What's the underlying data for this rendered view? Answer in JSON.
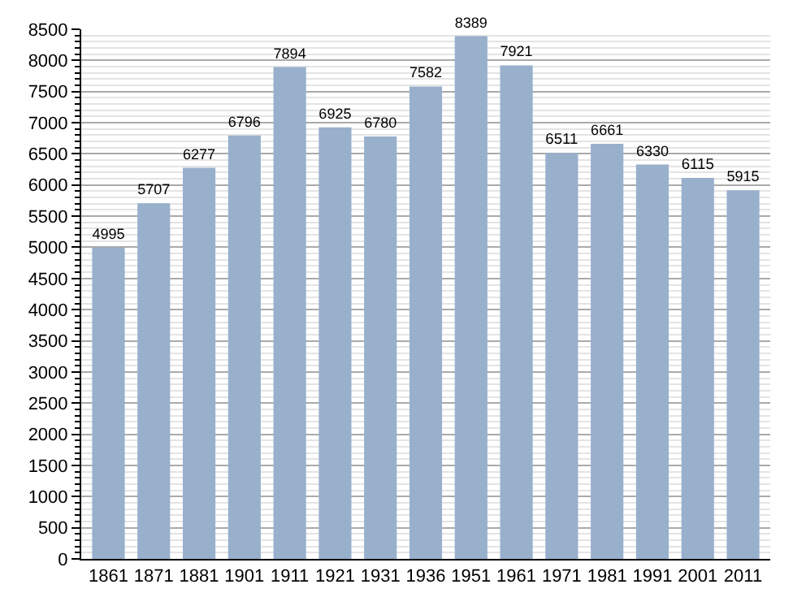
{
  "chart_data": {
    "type": "bar",
    "categories": [
      "1861",
      "1871",
      "1881",
      "1901",
      "1911",
      "1921",
      "1931",
      "1936",
      "1951",
      "1961",
      "1971",
      "1981",
      "1991",
      "2001",
      "2011"
    ],
    "values": [
      4995,
      5707,
      6277,
      6796,
      7894,
      6925,
      6780,
      7582,
      8389,
      7921,
      6511,
      6661,
      6330,
      6115,
      5915
    ],
    "color": "#98b0cc",
    "ylim": [
      0,
      8500
    ],
    "yticks": [
      0,
      500,
      1000,
      1500,
      2000,
      2500,
      3000,
      3500,
      4000,
      4500,
      5000,
      5500,
      6000,
      6500,
      7000,
      7500,
      8000,
      8500
    ],
    "grid": "y",
    "data_labels": true,
    "legend": false
  }
}
